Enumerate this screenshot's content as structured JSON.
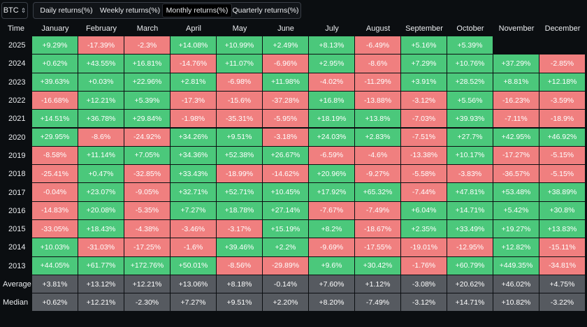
{
  "toolbar": {
    "asset": "BTC",
    "tabs": [
      "Daily returns(%)",
      "Weekly returns(%)",
      "Monthly returns(%)",
      "Quarterly returns(%)"
    ],
    "active_tab": 2
  },
  "table": {
    "time_header": "Time",
    "months": [
      "January",
      "February",
      "March",
      "April",
      "May",
      "June",
      "July",
      "August",
      "September",
      "October",
      "November",
      "December"
    ],
    "rows": [
      {
        "label": "2025",
        "values": [
          "+9.29%",
          "-17.39%",
          "-2.3%",
          "+14.08%",
          "+10.99%",
          "+2.49%",
          "+8.13%",
          "-6.49%",
          "+5.16%",
          "+5.39%",
          "",
          ""
        ]
      },
      {
        "label": "2024",
        "values": [
          "+0.62%",
          "+43.55%",
          "+16.81%",
          "-14.76%",
          "+11.07%",
          "-6.96%",
          "+2.95%",
          "-8.6%",
          "+7.29%",
          "+10.76%",
          "+37.29%",
          "-2.85%"
        ]
      },
      {
        "label": "2023",
        "values": [
          "+39.63%",
          "+0.03%",
          "+22.96%",
          "+2.81%",
          "-6.98%",
          "+11.98%",
          "-4.02%",
          "-11.29%",
          "+3.91%",
          "+28.52%",
          "+8.81%",
          "+12.18%"
        ]
      },
      {
        "label": "2022",
        "values": [
          "-16.68%",
          "+12.21%",
          "+5.39%",
          "-17.3%",
          "-15.6%",
          "-37.28%",
          "+16.8%",
          "-13.88%",
          "-3.12%",
          "+5.56%",
          "-16.23%",
          "-3.59%"
        ]
      },
      {
        "label": "2021",
        "values": [
          "+14.51%",
          "+36.78%",
          "+29.84%",
          "-1.98%",
          "-35.31%",
          "-5.95%",
          "+18.19%",
          "+13.8%",
          "-7.03%",
          "+39.93%",
          "-7.11%",
          "-18.9%"
        ]
      },
      {
        "label": "2020",
        "values": [
          "+29.95%",
          "-8.6%",
          "-24.92%",
          "+34.26%",
          "+9.51%",
          "-3.18%",
          "+24.03%",
          "+2.83%",
          "-7.51%",
          "+27.7%",
          "+42.95%",
          "+46.92%"
        ]
      },
      {
        "label": "2019",
        "values": [
          "-8.58%",
          "+11.14%",
          "+7.05%",
          "+34.36%",
          "+52.38%",
          "+26.67%",
          "-6.59%",
          "-4.6%",
          "-13.38%",
          "+10.17%",
          "-17.27%",
          "-5.15%"
        ]
      },
      {
        "label": "2018",
        "values": [
          "-25.41%",
          "+0.47%",
          "-32.85%",
          "+33.43%",
          "-18.99%",
          "-14.62%",
          "+20.96%",
          "-9.27%",
          "-5.58%",
          "-3.83%",
          "-36.57%",
          "-5.15%"
        ]
      },
      {
        "label": "2017",
        "values": [
          "-0.04%",
          "+23.07%",
          "-9.05%",
          "+32.71%",
          "+52.71%",
          "+10.45%",
          "+17.92%",
          "+65.32%",
          "-7.44%",
          "+47.81%",
          "+53.48%",
          "+38.89%"
        ]
      },
      {
        "label": "2016",
        "values": [
          "-14.83%",
          "+20.08%",
          "-5.35%",
          "+7.27%",
          "+18.78%",
          "+27.14%",
          "-7.67%",
          "-7.49%",
          "+6.04%",
          "+14.71%",
          "+5.42%",
          "+30.8%"
        ]
      },
      {
        "label": "2015",
        "values": [
          "-33.05%",
          "+18.43%",
          "-4.38%",
          "-3.46%",
          "-3.17%",
          "+15.19%",
          "+8.2%",
          "-18.67%",
          "+2.35%",
          "+33.49%",
          "+19.27%",
          "+13.83%"
        ]
      },
      {
        "label": "2014",
        "values": [
          "+10.03%",
          "-31.03%",
          "-17.25%",
          "-1.6%",
          "+39.46%",
          "+2.2%",
          "-9.69%",
          "-17.55%",
          "-19.01%",
          "-12.95%",
          "+12.82%",
          "-15.11%"
        ]
      },
      {
        "label": "2013",
        "values": [
          "+44.05%",
          "+61.77%",
          "+172.76%",
          "+50.01%",
          "-8.56%",
          "-29.89%",
          "+9.6%",
          "+30.42%",
          "-1.76%",
          "+60.79%",
          "+449.35%",
          "-34.81%"
        ]
      }
    ],
    "stats": [
      {
        "label": "Average",
        "values": [
          "+3.81%",
          "+13.12%",
          "+12.21%",
          "+13.06%",
          "+8.18%",
          "-0.14%",
          "+7.60%",
          "+1.12%",
          "-3.08%",
          "+20.62%",
          "+46.02%",
          "+4.75%"
        ]
      },
      {
        "label": "Median",
        "values": [
          "+0.62%",
          "+12.21%",
          "-2.30%",
          "+7.27%",
          "+9.51%",
          "+2.20%",
          "+8.20%",
          "-7.49%",
          "-3.12%",
          "+14.71%",
          "+10.82%",
          "-3.22%"
        ]
      }
    ],
    "colors": {
      "positive": "#4bc87b",
      "negative": "#f07f7f",
      "stat": "#565a60"
    }
  }
}
